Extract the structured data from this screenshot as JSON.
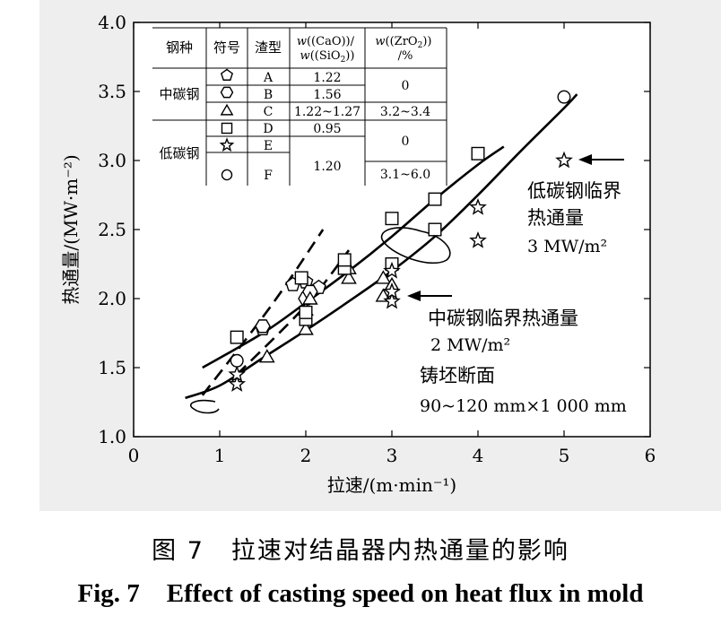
{
  "chart_data": {
    "type": "scatter",
    "xlabel": "拉速/(m·min⁻¹)",
    "ylabel": "热通量/(MW·m⁻²)",
    "xlim": [
      0,
      6
    ],
    "ylim": [
      1.0,
      4.0
    ],
    "xticks": [
      "0",
      "1",
      "2",
      "3",
      "4",
      "5",
      "6"
    ],
    "yticks": [
      "1.0",
      "1.5",
      "2.0",
      "2.5",
      "3.0",
      "3.5",
      "4.0"
    ],
    "series": [
      {
        "name": "A",
        "marker": "pentagon",
        "points": [
          [
            1.5,
            1.78
          ],
          [
            1.85,
            2.1
          ],
          [
            2.0,
            2.12
          ],
          [
            2.15,
            2.08
          ]
        ]
      },
      {
        "name": "B",
        "marker": "hexagon",
        "points": [
          [
            1.5,
            1.8
          ],
          [
            2.0,
            2.0
          ],
          [
            2.05,
            2.05
          ]
        ]
      },
      {
        "name": "C",
        "marker": "triangle",
        "points": [
          [
            1.55,
            1.58
          ],
          [
            2.0,
            1.78
          ],
          [
            2.0,
            1.92
          ],
          [
            2.05,
            2.0
          ],
          [
            2.5,
            2.15
          ],
          [
            2.5,
            2.22
          ],
          [
            2.9,
            2.02
          ],
          [
            2.9,
            2.15
          ],
          [
            3.0,
            2.1
          ]
        ]
      },
      {
        "name": "D",
        "marker": "square",
        "points": [
          [
            1.2,
            1.72
          ],
          [
            1.95,
            2.15
          ],
          [
            2.0,
            1.85
          ],
          [
            2.0,
            1.9
          ],
          [
            2.45,
            2.22
          ],
          [
            2.45,
            2.28
          ],
          [
            3.0,
            2.58
          ],
          [
            3.0,
            2.25
          ],
          [
            3.5,
            2.5
          ],
          [
            3.5,
            2.72
          ],
          [
            4.0,
            3.05
          ]
        ]
      },
      {
        "name": "E",
        "marker": "star",
        "points": [
          [
            1.2,
            1.38
          ],
          [
            1.2,
            1.45
          ],
          [
            3.0,
            1.98
          ],
          [
            3.0,
            2.05
          ],
          [
            3.0,
            2.2
          ],
          [
            4.0,
            2.42
          ],
          [
            4.0,
            2.66
          ],
          [
            5.0,
            3.0
          ]
        ]
      },
      {
        "name": "F",
        "marker": "circle",
        "points": [
          [
            1.2,
            1.55
          ],
          [
            5.0,
            3.46
          ]
        ]
      }
    ],
    "fit_curves": [
      {
        "name": "upper-fit",
        "style": "solid",
        "points": [
          [
            0.8,
            1.5
          ],
          [
            1.5,
            1.75
          ],
          [
            2.0,
            1.97
          ],
          [
            2.5,
            2.2
          ],
          [
            3.0,
            2.45
          ],
          [
            3.5,
            2.72
          ],
          [
            4.0,
            2.97
          ],
          [
            4.3,
            3.1
          ]
        ]
      },
      {
        "name": "lower-fit",
        "style": "solid",
        "points": [
          [
            0.6,
            1.28
          ],
          [
            1.0,
            1.37
          ],
          [
            1.5,
            1.57
          ],
          [
            2.0,
            1.77
          ],
          [
            2.5,
            1.98
          ],
          [
            3.0,
            2.2
          ],
          [
            3.5,
            2.45
          ],
          [
            4.0,
            2.75
          ],
          [
            4.5,
            3.07
          ],
          [
            5.0,
            3.38
          ],
          [
            5.15,
            3.48
          ]
        ]
      },
      {
        "name": "dashed-1",
        "style": "dashed",
        "points": [
          [
            0.8,
            1.3
          ],
          [
            1.6,
            1.95
          ],
          [
            2.2,
            2.5
          ]
        ]
      },
      {
        "name": "dashed-2",
        "style": "dashed",
        "points": [
          [
            1.2,
            1.45
          ],
          [
            2.0,
            1.95
          ],
          [
            2.5,
            2.35
          ]
        ]
      }
    ],
    "legend_table": {
      "headers": [
        "钢种",
        "符号",
        "渣型",
        "w((CaO))/w((SiO₂))",
        "w((ZrO₂))/%"
      ],
      "steel_groups": [
        "中碳钢",
        "低碳钢"
      ],
      "slag_types": [
        "A",
        "B",
        "C",
        "D",
        "E",
        "F"
      ],
      "symbols": [
        "⬠",
        "⬡",
        "△",
        "□",
        "☆",
        "○"
      ],
      "ratios": [
        "1.22",
        "1.56",
        "1.22~1.27",
        "0.95",
        "1.20"
      ],
      "zro2": [
        "0",
        "3.2~3.4",
        "0",
        "3.1~6.0"
      ]
    },
    "annotations": {
      "low_carbon_line1": "低碳钢临界",
      "low_carbon_line2": "热通量",
      "low_carbon_value": "3 MW/m²",
      "mid_carbon_line1": "中碳钢临界热通量",
      "mid_carbon_value": "2 MW/m²",
      "billet_label": "铸坯断面",
      "billet_size": "90~120 mm×1 000 mm"
    }
  },
  "caption": {
    "cn_number": "图 7",
    "cn_text": "拉速对结晶器内热通量的影响",
    "en_number": "Fig. 7",
    "en_text": "Effect of casting speed on heat flux in mold"
  }
}
